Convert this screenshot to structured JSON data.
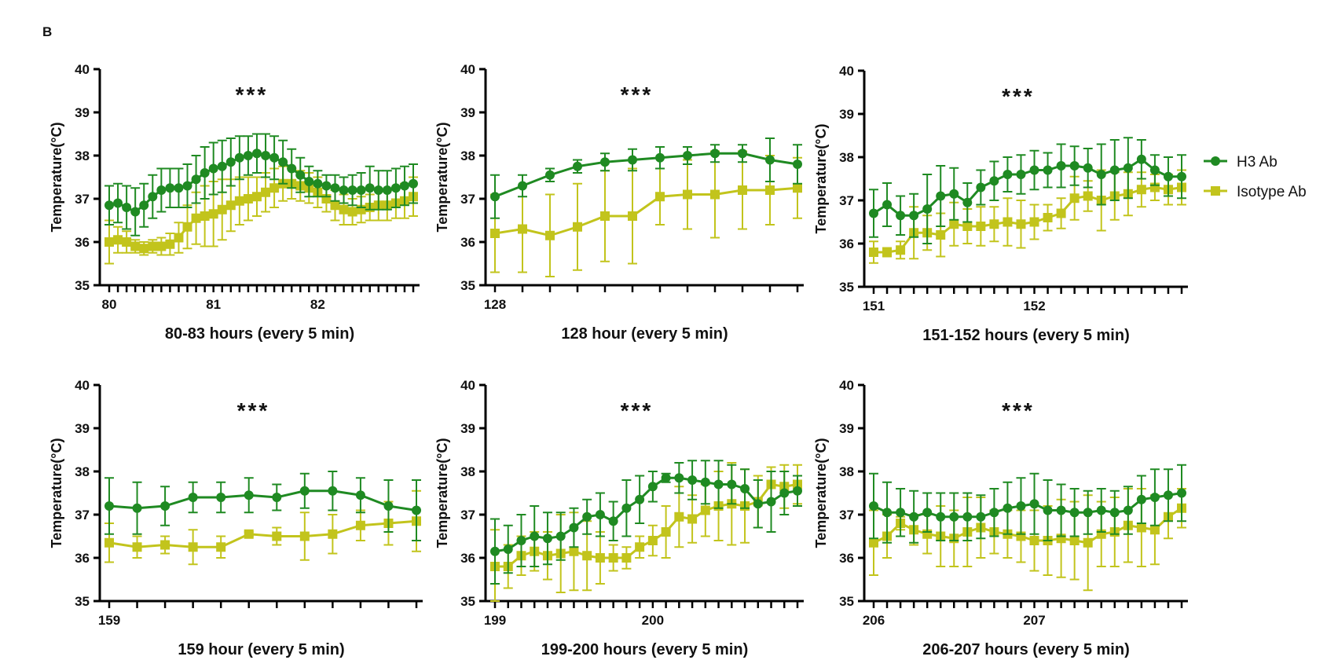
{
  "panel_letter": "B",
  "colors": {
    "h3": "#1f8a22",
    "isotype": "#c2c41c",
    "axis": "#000000"
  },
  "legend": [
    {
      "key": "h3",
      "label": "H3 Ab",
      "marker": "circle"
    },
    {
      "key": "isotype",
      "label": "Isotype Ab",
      "marker": "square"
    }
  ],
  "chart_data": [
    {
      "type": "line",
      "title": "",
      "xlabel": "80-83 hours (every 5 min)",
      "ylabel": "Temperature(°C)",
      "ylim": [
        35,
        40
      ],
      "yticks": [
        35,
        36,
        37,
        38,
        39,
        40
      ],
      "xticks": [
        {
          "label": "80",
          "index": 0
        },
        {
          "label": "81",
          "index": 12
        },
        {
          "label": "82",
          "index": 24
        }
      ],
      "significance": "***",
      "series": [
        {
          "name": "H3 Ab",
          "values": [
            36.85,
            36.9,
            36.8,
            36.7,
            36.85,
            37.05,
            37.2,
            37.25,
            37.25,
            37.3,
            37.45,
            37.6,
            37.7,
            37.75,
            37.85,
            37.95,
            38.0,
            38.05,
            38.0,
            37.95,
            37.85,
            37.7,
            37.55,
            37.4,
            37.35,
            37.3,
            37.25,
            37.2,
            37.2,
            37.2,
            37.25,
            37.2,
            37.2,
            37.25,
            37.3,
            37.35
          ],
          "errors": [
            0.45,
            0.45,
            0.5,
            0.55,
            0.5,
            0.5,
            0.5,
            0.45,
            0.45,
            0.5,
            0.55,
            0.6,
            0.6,
            0.6,
            0.55,
            0.5,
            0.45,
            0.45,
            0.5,
            0.5,
            0.5,
            0.45,
            0.4,
            0.35,
            0.3,
            0.25,
            0.3,
            0.3,
            0.35,
            0.4,
            0.5,
            0.45,
            0.45,
            0.45,
            0.45,
            0.45
          ]
        },
        {
          "name": "Isotype Ab",
          "values": [
            36.0,
            36.05,
            36.0,
            35.9,
            35.85,
            35.9,
            35.9,
            35.95,
            36.1,
            36.35,
            36.55,
            36.6,
            36.65,
            36.75,
            36.85,
            36.95,
            37.0,
            37.05,
            37.15,
            37.25,
            37.35,
            37.35,
            37.3,
            37.25,
            37.15,
            37.0,
            36.85,
            36.75,
            36.7,
            36.75,
            36.8,
            36.85,
            36.85,
            36.9,
            36.95,
            37.05
          ],
          "errors": [
            0.5,
            0.3,
            0.25,
            0.15,
            0.15,
            0.15,
            0.2,
            0.25,
            0.35,
            0.5,
            0.6,
            0.7,
            0.75,
            0.7,
            0.6,
            0.55,
            0.5,
            0.45,
            0.45,
            0.45,
            0.4,
            0.35,
            0.35,
            0.35,
            0.35,
            0.3,
            0.35,
            0.35,
            0.3,
            0.3,
            0.3,
            0.35,
            0.35,
            0.35,
            0.4,
            0.45
          ]
        }
      ]
    },
    {
      "type": "line",
      "title": "",
      "xlabel": "128 hour (every 5 min)",
      "ylabel": "Temperature(°C)",
      "ylim": [
        35,
        40
      ],
      "yticks": [
        35,
        36,
        37,
        38,
        39,
        40
      ],
      "xticks": [
        {
          "label": "128",
          "index": 0
        }
      ],
      "significance": "***",
      "series": [
        {
          "name": "H3 Ab",
          "values": [
            37.05,
            37.3,
            37.55,
            37.75,
            37.85,
            37.9,
            37.95,
            38.0,
            38.05,
            38.05,
            37.9,
            37.8
          ],
          "errors": [
            0.5,
            0.25,
            0.15,
            0.15,
            0.2,
            0.25,
            0.25,
            0.2,
            0.2,
            0.2,
            0.5,
            0.45
          ]
        },
        {
          "name": "Isotype Ab",
          "values": [
            36.2,
            36.3,
            36.15,
            36.35,
            36.6,
            36.6,
            37.05,
            37.1,
            37.1,
            37.2,
            37.2,
            37.25
          ],
          "errors": [
            0.9,
            1.0,
            0.95,
            1.0,
            1.05,
            1.1,
            0.65,
            0.8,
            1.0,
            0.9,
            0.8,
            0.7
          ]
        }
      ]
    },
    {
      "type": "line",
      "title": "",
      "xlabel": "151-152 hours (every 5 min)",
      "ylabel": "Temperature(°C)",
      "ylim": [
        35,
        40
      ],
      "yticks": [
        35,
        36,
        37,
        38,
        39,
        40
      ],
      "xticks": [
        {
          "label": "151",
          "index": 0
        },
        {
          "label": "152",
          "index": 12
        }
      ],
      "significance": "***",
      "series": [
        {
          "name": "H3 Ab",
          "values": [
            36.7,
            36.9,
            36.65,
            36.65,
            36.8,
            37.1,
            37.15,
            36.95,
            37.3,
            37.45,
            37.6,
            37.6,
            37.7,
            37.7,
            37.8,
            37.8,
            37.75,
            37.6,
            37.7,
            37.75,
            37.95,
            37.7,
            37.55,
            37.55
          ],
          "errors": [
            0.55,
            0.5,
            0.45,
            0.5,
            0.8,
            0.7,
            0.6,
            0.45,
            0.4,
            0.45,
            0.4,
            0.45,
            0.45,
            0.4,
            0.5,
            0.45,
            0.45,
            0.7,
            0.7,
            0.7,
            0.45,
            0.35,
            0.45,
            0.5
          ]
        },
        {
          "name": "Isotype Ab",
          "values": [
            35.8,
            35.8,
            35.85,
            36.25,
            36.25,
            36.2,
            36.45,
            36.4,
            36.4,
            36.45,
            36.5,
            36.45,
            36.5,
            36.6,
            36.7,
            37.05,
            37.1,
            37.0,
            37.1,
            37.15,
            37.25,
            37.3,
            37.25,
            37.3
          ],
          "errors": [
            0.25,
            0.1,
            0.2,
            0.6,
            0.4,
            0.5,
            0.5,
            0.4,
            0.45,
            0.4,
            0.55,
            0.55,
            0.4,
            0.3,
            0.35,
            0.5,
            0.35,
            0.7,
            0.55,
            0.5,
            0.4,
            0.3,
            0.35,
            0.4
          ]
        }
      ]
    },
    {
      "type": "line",
      "title": "",
      "xlabel": "159 hour (every 5 min)",
      "ylabel": "Temperature(°C)",
      "ylim": [
        35,
        40
      ],
      "yticks": [
        35,
        36,
        37,
        38,
        39,
        40
      ],
      "xticks": [
        {
          "label": "159",
          "index": 0
        }
      ],
      "significance": "***",
      "series": [
        {
          "name": "H3 Ab",
          "values": [
            37.2,
            37.15,
            37.2,
            37.4,
            37.4,
            37.45,
            37.4,
            37.55,
            37.55,
            37.45,
            37.2,
            37.1
          ],
          "errors": [
            0.65,
            0.6,
            0.45,
            0.35,
            0.35,
            0.4,
            0.3,
            0.4,
            0.45,
            0.4,
            0.6,
            0.7
          ]
        },
        {
          "name": "Isotype Ab",
          "values": [
            36.35,
            36.25,
            36.3,
            36.25,
            36.25,
            36.55,
            36.5,
            36.5,
            36.55,
            36.75,
            36.8,
            36.85
          ],
          "errors": [
            0.45,
            0.25,
            0.2,
            0.4,
            0.25,
            0.05,
            0.2,
            0.55,
            0.45,
            0.35,
            0.5,
            0.7
          ]
        }
      ]
    },
    {
      "type": "line",
      "title": "",
      "xlabel": "199-200 hours (every 5 min)",
      "ylabel": "Temperature(°C)",
      "ylim": [
        35,
        40
      ],
      "yticks": [
        35,
        36,
        37,
        38,
        39,
        40
      ],
      "xticks": [
        {
          "label": "199",
          "index": 0
        },
        {
          "label": "200",
          "index": 12
        }
      ],
      "significance": "***",
      "series": [
        {
          "name": "H3 Ab",
          "values": [
            36.15,
            36.2,
            36.4,
            36.5,
            36.45,
            36.5,
            36.7,
            36.95,
            37.0,
            36.85,
            37.15,
            37.35,
            37.65,
            37.85,
            37.85,
            37.8,
            37.75,
            37.7,
            37.7,
            37.6,
            37.25,
            37.3,
            37.5,
            37.55
          ],
          "errors": [
            0.75,
            0.55,
            0.6,
            0.7,
            0.6,
            0.55,
            0.45,
            0.4,
            0.5,
            0.45,
            0.65,
            0.55,
            0.35,
            0.1,
            0.35,
            0.45,
            0.5,
            0.55,
            0.45,
            0.45,
            0.55,
            0.7,
            0.5,
            0.35
          ]
        },
        {
          "name": "Isotype Ab",
          "values": [
            35.8,
            35.8,
            36.05,
            36.15,
            36.05,
            36.1,
            36.15,
            36.05,
            36.0,
            36.0,
            36.0,
            36.25,
            36.4,
            36.6,
            36.95,
            36.9,
            37.1,
            37.2,
            37.25,
            37.2,
            37.3,
            37.7,
            37.65,
            37.7
          ],
          "errors": [
            0.85,
            0.5,
            0.45,
            0.45,
            0.55,
            0.9,
            0.9,
            0.8,
            0.6,
            0.3,
            0.25,
            0.25,
            0.35,
            0.6,
            0.7,
            0.55,
            0.6,
            0.8,
            0.95,
            0.85,
            0.6,
            0.4,
            0.5,
            0.45
          ]
        }
      ]
    },
    {
      "type": "line",
      "title": "",
      "xlabel": "206-207 hours (every 5 min)",
      "ylabel": "Temperature(°C)",
      "ylim": [
        35,
        40
      ],
      "yticks": [
        35,
        36,
        37,
        38,
        39,
        40
      ],
      "xticks": [
        {
          "label": "206",
          "index": 0
        },
        {
          "label": "207",
          "index": 12
        }
      ],
      "significance": "***",
      "series": [
        {
          "name": "H3 Ab",
          "values": [
            37.2,
            37.05,
            37.05,
            36.95,
            37.05,
            36.95,
            36.95,
            36.95,
            36.95,
            37.05,
            37.15,
            37.2,
            37.25,
            37.1,
            37.1,
            37.05,
            37.05,
            37.1,
            37.05,
            37.1,
            37.35,
            37.4,
            37.45,
            37.5
          ],
          "errors": [
            0.75,
            0.7,
            0.55,
            0.6,
            0.45,
            0.55,
            0.55,
            0.55,
            0.5,
            0.55,
            0.6,
            0.65,
            0.7,
            0.7,
            0.6,
            0.55,
            0.5,
            0.5,
            0.5,
            0.55,
            0.55,
            0.65,
            0.6,
            0.65
          ]
        },
        {
          "name": "Isotype Ab",
          "values": [
            36.35,
            36.5,
            36.8,
            36.65,
            36.55,
            36.5,
            36.45,
            36.6,
            36.7,
            36.6,
            36.55,
            36.5,
            36.4,
            36.4,
            36.45,
            36.4,
            36.35,
            36.55,
            36.6,
            36.75,
            36.7,
            36.65,
            36.95,
            37.15
          ],
          "errors": [
            0.75,
            0.5,
            0.15,
            0.35,
            0.45,
            0.7,
            0.65,
            0.8,
            0.7,
            0.5,
            0.55,
            0.6,
            0.7,
            0.8,
            0.9,
            0.9,
            1.1,
            0.75,
            0.8,
            0.85,
            0.9,
            0.8,
            0.5,
            0.45
          ]
        }
      ]
    }
  ]
}
